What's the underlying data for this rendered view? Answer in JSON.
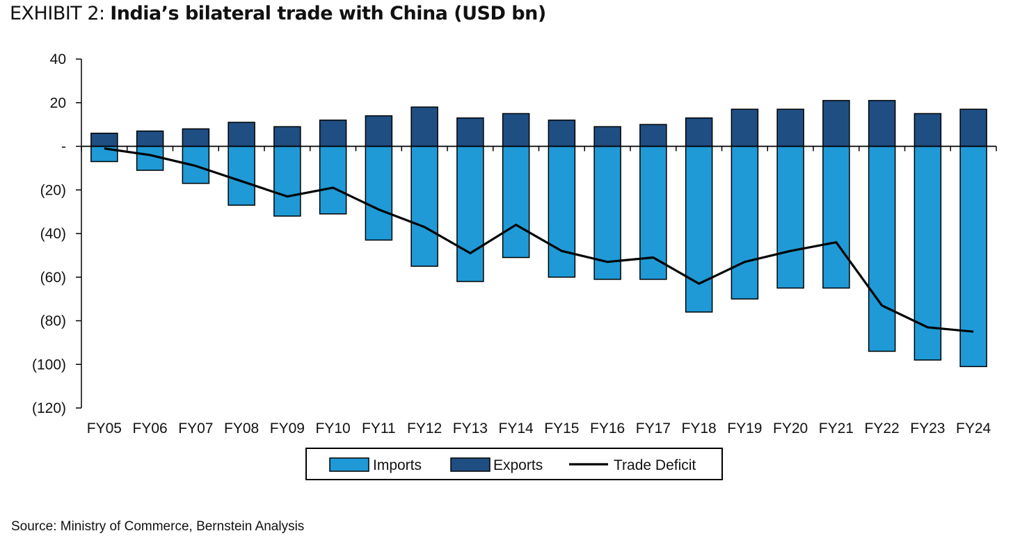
{
  "header": {
    "exhibit_label": "EXHIBIT 2:",
    "title": "India’s bilateral trade with China (USD bn)"
  },
  "source": "Source: Ministry of Commerce, Bernstein Analysis",
  "colors": {
    "imports": "#1f9ad6",
    "exports": "#1f4e83",
    "deficit": "#000000"
  },
  "chart_data": {
    "type": "bar",
    "categories": [
      "FY05",
      "FY06",
      "FY07",
      "FY08",
      "FY09",
      "FY10",
      "FY11",
      "FY12",
      "FY13",
      "FY14",
      "FY15",
      "FY16",
      "FY17",
      "FY18",
      "FY19",
      "FY20",
      "FY21",
      "FY22",
      "FY23",
      "FY24"
    ],
    "series": [
      {
        "name": "Imports",
        "type": "bar",
        "values": [
          -7,
          -11,
          -17,
          -27,
          -32,
          -31,
          -43,
          -55,
          -62,
          -51,
          -60,
          -61,
          -61,
          -76,
          -70,
          -65,
          -65,
          -94,
          -98,
          -101
        ]
      },
      {
        "name": "Exports",
        "type": "bar",
        "values": [
          6,
          7,
          8,
          11,
          9,
          12,
          14,
          18,
          13,
          15,
          12,
          9,
          10,
          13,
          17,
          17,
          21,
          21,
          15,
          17
        ]
      },
      {
        "name": "Trade Deficit",
        "type": "line",
        "values": [
          -1,
          -4,
          -9,
          -16,
          -23,
          -19,
          -29,
          -37,
          -49,
          -36,
          -48,
          -53,
          -51,
          -63,
          -53,
          -48,
          -44,
          -73,
          -83,
          -85
        ]
      }
    ],
    "ylim": [
      -120,
      40
    ],
    "yticks": [
      40,
      20,
      0,
      -20,
      -40,
      -60,
      -80,
      -100,
      -120
    ],
    "ytick_labels": [
      "40",
      "20",
      "-",
      "(20)",
      "(40)",
      "(60)",
      "(80)",
      "(100)",
      "(120)"
    ],
    "legend": {
      "position": "bottom-center",
      "items": [
        "Imports",
        "Exports",
        "Trade Deficit"
      ]
    },
    "grid": false
  }
}
